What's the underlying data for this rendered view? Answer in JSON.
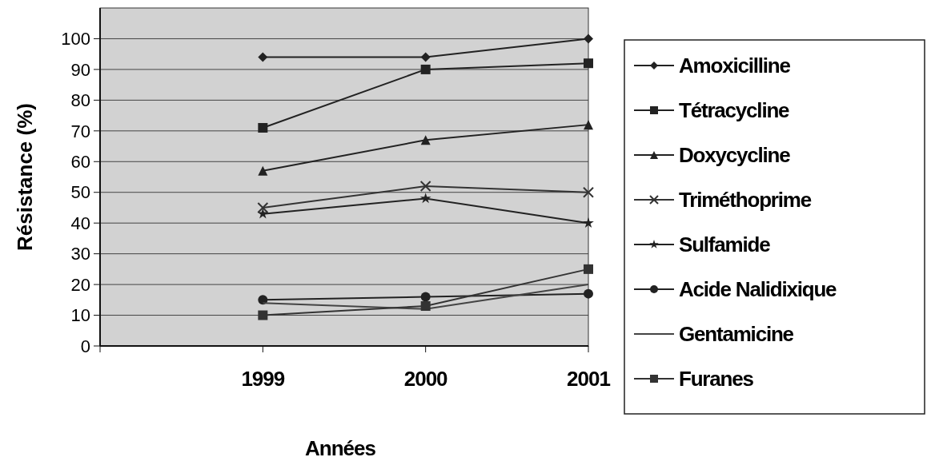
{
  "chart_data": {
    "type": "line",
    "xlabel": "Années",
    "ylabel": "Résistance (%)",
    "categories": [
      null,
      "1999",
      "2000",
      "2001"
    ],
    "ylim": [
      0,
      110
    ],
    "yticks": [
      0,
      10,
      20,
      30,
      40,
      50,
      60,
      70,
      80,
      90,
      100
    ],
    "grid": "y",
    "legend": "right",
    "series": [
      {
        "name": "Amoxicilline",
        "color": "#222222",
        "marker": "diamond",
        "values": [
          null,
          94,
          94,
          100
        ]
      },
      {
        "name": "Tétracycline",
        "color": "#222222",
        "marker": "square",
        "values": [
          null,
          71,
          90,
          92
        ]
      },
      {
        "name": "Doxycycline",
        "color": "#222222",
        "marker": "triangle",
        "values": [
          null,
          57,
          67,
          72
        ]
      },
      {
        "name": "Triméthoprime",
        "color": "#333333",
        "marker": "cross",
        "values": [
          null,
          45,
          52,
          50
        ]
      },
      {
        "name": "Sulfamide",
        "color": "#222222",
        "marker": "star",
        "values": [
          null,
          43,
          48,
          40
        ]
      },
      {
        "name": "Acide Nalidixique",
        "color": "#222222",
        "marker": "circle",
        "values": [
          null,
          15,
          16,
          17
        ]
      },
      {
        "name": "Gentamicine",
        "color": "#444444",
        "marker": "none",
        "values": [
          null,
          14,
          12,
          20
        ]
      },
      {
        "name": "Furanes",
        "color": "#333333",
        "marker": "square",
        "values": [
          null,
          10,
          13,
          25
        ]
      }
    ]
  }
}
